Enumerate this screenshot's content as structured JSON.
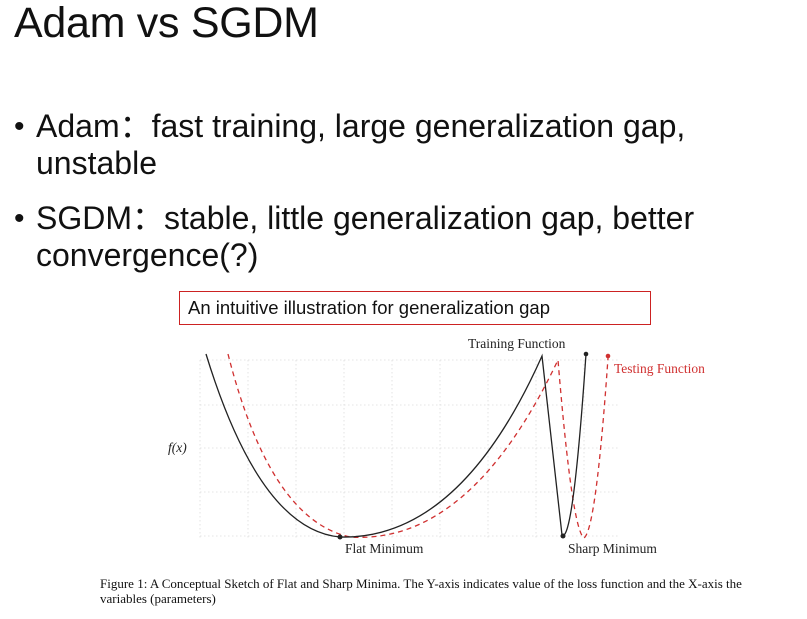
{
  "slide": {
    "title": "Adam vs SGDM",
    "bullets": [
      {
        "marker": "•",
        "text": "Adam：fast training, large generalization gap,\nunstable"
      },
      {
        "marker": "•",
        "text": "SGDM：stable, little generalization gap, better\nconvergence(?)"
      }
    ],
    "callout": "An intuitive illustration for generalization gap"
  },
  "figure": {
    "training_label": "Training Function",
    "testing_label": "Testing Function",
    "y_label": "f(x)",
    "flat_label": "Flat Minimum",
    "sharp_label": "Sharp Minimum",
    "caption": "Figure 1: A Conceptual Sketch of Flat and Sharp Minima. The Y-axis indicates value of the loss function and the X-axis the variables (parameters)",
    "colors": {
      "training": "#222222",
      "testing": "#d03030",
      "callout_border": "#cc2222"
    }
  }
}
